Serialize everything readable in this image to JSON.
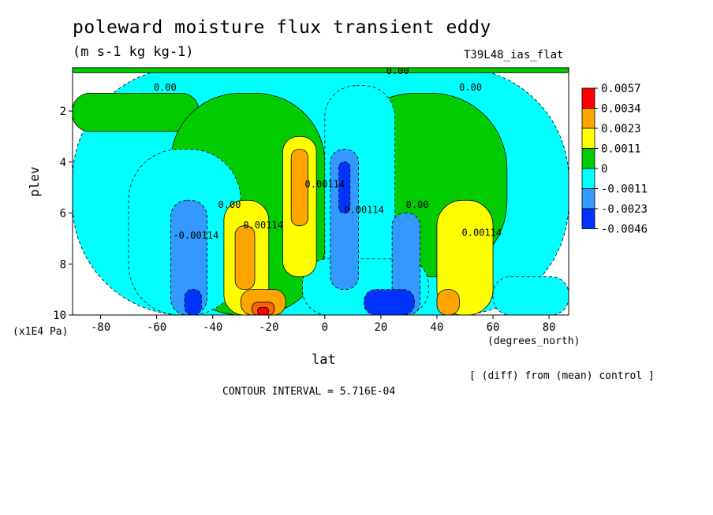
{
  "figure": {
    "title": "poleward moisture flux transient eddy",
    "units": "(m s-1 kg kg-1)",
    "model": "T39L48_ias_flat",
    "xlabel": "lat",
    "x_unit": "(degrees_north)",
    "ylabel": "plev",
    "y_unit": "(x1E4 Pa)",
    "note": "[ (diff) from (mean) control ]",
    "contour_interval": "CONTOUR INTERVAL = 5.716E-04"
  },
  "chart_data": {
    "type": "heatmap",
    "title": "poleward moisture flux transient eddy",
    "xlabel": "lat",
    "ylabel": "plev",
    "xlim": [
      -90,
      87
    ],
    "ylim": [
      10,
      0.3
    ],
    "x_ticks": [
      -80,
      -60,
      -40,
      -20,
      0,
      20,
      40,
      60,
      80
    ],
    "y_ticks": [
      2,
      4,
      6,
      8,
      10
    ],
    "legend": {
      "placement": "right",
      "levels": [
        "0.0057",
        "0.0034",
        "0.0023",
        "0.0011",
        "0",
        "-0.0011",
        "-0.0023",
        "-0.0046"
      ],
      "colors": [
        "#ff0000",
        "#ffa500",
        "#ffff00",
        "#00cc00",
        "#00ffff",
        "#3399ff",
        "#0033ff"
      ]
    },
    "contour_labels": [
      {
        "text": "0.00",
        "x": -57,
        "y": 1.2
      },
      {
        "text": "0.00",
        "x": -2,
        "y": 0.3
      },
      {
        "text": "0.00",
        "x": 26,
        "y": 0.55
      },
      {
        "text": "0.00",
        "x": 52,
        "y": 1.2
      },
      {
        "text": "0.00",
        "x": -34,
        "y": 5.8
      },
      {
        "text": "0.00",
        "x": 33,
        "y": 5.8
      },
      {
        "text": "0.00114",
        "x": -22,
        "y": 6.6
      },
      {
        "text": "0.00114",
        "x": 0,
        "y": 5.0
      },
      {
        "text": "0.00114",
        "x": 14,
        "y": 6.0
      },
      {
        "text": "-0.00114",
        "x": -46,
        "y": 7.0
      },
      {
        "text": "0.00114",
        "x": 56,
        "y": 6.9
      }
    ],
    "regions": [
      {
        "level": "-0.0011",
        "x": [
          -90,
          87
        ],
        "y": [
          0.3,
          10
        ]
      },
      {
        "level": "0",
        "x": [
          -90,
          -45
        ],
        "y": [
          1.3,
          2.8
        ]
      },
      {
        "level": "0",
        "x": [
          -55,
          0
        ],
        "y": [
          1.3,
          10
        ]
      },
      {
        "level": "0",
        "x": [
          5,
          65
        ],
        "y": [
          1.3,
          8.5
        ]
      },
      {
        "level": "0",
        "x": [
          -90,
          87
        ],
        "y": [
          0.3,
          0.5
        ]
      },
      {
        "level": "-0.0011",
        "x": [
          0,
          25
        ],
        "y": [
          1.0,
          10
        ]
      },
      {
        "level": "-0.0011",
        "x": [
          -70,
          -30
        ],
        "y": [
          3.5,
          10
        ]
      },
      {
        "level": "-0.0011",
        "x": [
          -8,
          37
        ],
        "y": [
          7.8,
          10
        ]
      },
      {
        "level": "-0.0011",
        "x": [
          60,
          87
        ],
        "y": [
          8.5,
          10
        ]
      },
      {
        "level": "-0.0023",
        "x": [
          -55,
          -42
        ],
        "y": [
          5.5,
          10
        ]
      },
      {
        "level": "-0.0023",
        "x": [
          2,
          12
        ],
        "y": [
          3.5,
          9
        ]
      },
      {
        "level": "-0.0023",
        "x": [
          24,
          34
        ],
        "y": [
          6.0,
          10
        ]
      },
      {
        "level": "-0.0046",
        "x": [
          -50,
          -44
        ],
        "y": [
          9.0,
          10
        ]
      },
      {
        "level": "-0.0046",
        "x": [
          5,
          9
        ],
        "y": [
          4.0,
          6.0
        ]
      },
      {
        "level": "-0.0046",
        "x": [
          14,
          32
        ],
        "y": [
          9.0,
          10
        ]
      },
      {
        "level": "0.0011",
        "x": [
          -36,
          -20
        ],
        "y": [
          5.5,
          10
        ]
      },
      {
        "level": "0.0011",
        "x": [
          -15,
          -3
        ],
        "y": [
          3.0,
          8.5
        ]
      },
      {
        "level": "0.0011",
        "x": [
          40,
          60
        ],
        "y": [
          5.5,
          10
        ]
      },
      {
        "level": "0.0023",
        "x": [
          -32,
          -25
        ],
        "y": [
          6.5,
          9
        ]
      },
      {
        "level": "0.0023",
        "x": [
          -12,
          -6
        ],
        "y": [
          3.5,
          6.5
        ]
      },
      {
        "level": "0.0023",
        "x": [
          -30,
          -14
        ],
        "y": [
          9.0,
          10
        ]
      },
      {
        "level": "0.0023",
        "x": [
          40,
          48
        ],
        "y": [
          9.0,
          10
        ]
      },
      {
        "level": "0.0034",
        "x": [
          -26,
          -18
        ],
        "y": [
          9.5,
          10
        ]
      },
      {
        "level": "0.0057",
        "x": [
          -24,
          -20
        ],
        "y": [
          9.7,
          10
        ]
      }
    ]
  }
}
